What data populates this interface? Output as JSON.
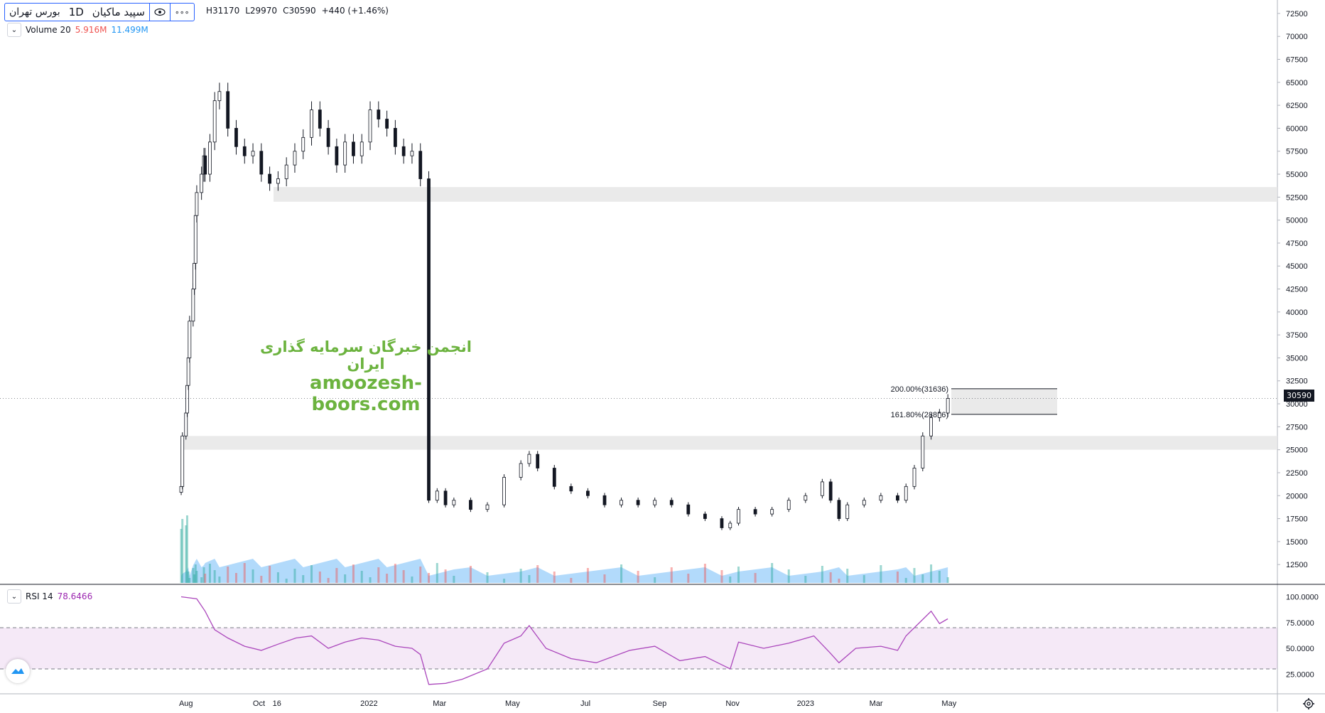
{
  "header": {
    "symbol": "سپید ماکیان",
    "interval": "1D",
    "exchange": "بورس تهران",
    "menu_label": "∘∘∘",
    "high": "H31170",
    "low": "L29970",
    "close": "C30590",
    "change": "+440 (+1.46%)"
  },
  "volume_pane": {
    "label": "Volume 20",
    "value1": "5.916M",
    "value2": "11.499M",
    "color_value1": "#ef5350",
    "color_value2": "#2196f3"
  },
  "rsi_pane": {
    "label": "RSI 14",
    "value": "78.6466",
    "color": "#9c27b0",
    "axis_ticks": [
      "100.0000",
      "75.0000",
      "50.0000",
      "25.0000"
    ]
  },
  "watermark": {
    "line1": "انجمن خبرگان سرمایه گذاری ایران",
    "line2": "amoozesh-boors.com"
  },
  "fib": {
    "label_upper": "200.00%(31636)",
    "label_lower": "161.80%(28856)"
  },
  "last_price": "30590",
  "icons": {
    "visibility": "eye-icon",
    "settings": "gear-icon",
    "logo": "tradingview-logo-icon"
  },
  "chart_data": {
    "type": "candlestick",
    "title": "سپید ماکیان",
    "interval": "1D",
    "price_axis_ticks": [
      "72500",
      "70000",
      "67500",
      "65000",
      "62500",
      "60000",
      "57500",
      "55000",
      "52500",
      "50000",
      "47500",
      "45000",
      "42500",
      "40000",
      "37500",
      "35000",
      "32500",
      "30000",
      "27500",
      "25000",
      "22500",
      "20000",
      "17500",
      "15000",
      "12500"
    ],
    "x_tick_labels": [
      "Aug",
      "Oct",
      "16",
      "2022",
      "Mar",
      "May",
      "Jul",
      "Sep",
      "Nov",
      "2023",
      "Mar",
      "May"
    ],
    "ylim": [
      10500,
      73500
    ],
    "zones": [
      {
        "from": 52000,
        "to": 53600
      },
      {
        "from": 25000,
        "to": 26500
      },
      {
        "from": 28856,
        "to": 31636
      }
    ],
    "close_series": [
      {
        "x": "2021-07-28",
        "y": 21000
      },
      {
        "x": "2021-07-29",
        "y": 26500
      },
      {
        "x": "2021-08-01",
        "y": 29000
      },
      {
        "x": "2021-08-02",
        "y": 32000
      },
      {
        "x": "2021-08-03",
        "y": 35000
      },
      {
        "x": "2021-08-04",
        "y": 39000
      },
      {
        "x": "2021-08-07",
        "y": 42500
      },
      {
        "x": "2021-08-08",
        "y": 45300
      },
      {
        "x": "2021-08-09",
        "y": 50500
      },
      {
        "x": "2021-08-10",
        "y": 53000
      },
      {
        "x": "2021-08-14",
        "y": 55000
      },
      {
        "x": "2021-08-16",
        "y": 57000
      },
      {
        "x": "2021-08-17",
        "y": 55000
      },
      {
        "x": "2021-08-21",
        "y": 58500
      },
      {
        "x": "2021-08-25",
        "y": 63000
      },
      {
        "x": "2021-08-29",
        "y": 64000
      },
      {
        "x": "2021-09-05",
        "y": 60000
      },
      {
        "x": "2021-09-12",
        "y": 58000
      },
      {
        "x": "2021-09-19",
        "y": 57000
      },
      {
        "x": "2021-09-26",
        "y": 57500
      },
      {
        "x": "2021-10-03",
        "y": 55000
      },
      {
        "x": "2021-10-10",
        "y": 54000
      },
      {
        "x": "2021-10-17",
        "y": 54500
      },
      {
        "x": "2021-10-24",
        "y": 56000
      },
      {
        "x": "2021-10-31",
        "y": 57500
      },
      {
        "x": "2021-11-07",
        "y": 59000
      },
      {
        "x": "2021-11-14",
        "y": 62000
      },
      {
        "x": "2021-11-21",
        "y": 60000
      },
      {
        "x": "2021-11-28",
        "y": 58000
      },
      {
        "x": "2021-12-05",
        "y": 56000
      },
      {
        "x": "2021-12-12",
        "y": 58500
      },
      {
        "x": "2021-12-19",
        "y": 57000
      },
      {
        "x": "2021-12-26",
        "y": 58500
      },
      {
        "x": "2022-01-02",
        "y": 62000
      },
      {
        "x": "2022-01-09",
        "y": 61000
      },
      {
        "x": "2022-01-16",
        "y": 60000
      },
      {
        "x": "2022-01-23",
        "y": 58000
      },
      {
        "x": "2022-01-30",
        "y": 57000
      },
      {
        "x": "2022-02-06",
        "y": 57500
      },
      {
        "x": "2022-02-13",
        "y": 54500
      },
      {
        "x": "2022-02-20",
        "y": 19500
      },
      {
        "x": "2022-02-27",
        "y": 20500
      },
      {
        "x": "2022-03-06",
        "y": 19000
      },
      {
        "x": "2022-03-13",
        "y": 19500
      },
      {
        "x": "2022-03-27",
        "y": 18500
      },
      {
        "x": "2022-04-10",
        "y": 19000
      },
      {
        "x": "2022-04-24",
        "y": 22000
      },
      {
        "x": "2022-05-08",
        "y": 23500
      },
      {
        "x": "2022-05-15",
        "y": 24500
      },
      {
        "x": "2022-05-22",
        "y": 23000
      },
      {
        "x": "2022-06-05",
        "y": 21000
      },
      {
        "x": "2022-06-19",
        "y": 20500
      },
      {
        "x": "2022-07-03",
        "y": 20000
      },
      {
        "x": "2022-07-17",
        "y": 19000
      },
      {
        "x": "2022-07-31",
        "y": 19500
      },
      {
        "x": "2022-08-14",
        "y": 19000
      },
      {
        "x": "2022-08-28",
        "y": 19500
      },
      {
        "x": "2022-09-11",
        "y": 19000
      },
      {
        "x": "2022-09-25",
        "y": 18000
      },
      {
        "x": "2022-10-09",
        "y": 17500
      },
      {
        "x": "2022-10-23",
        "y": 16500
      },
      {
        "x": "2022-10-30",
        "y": 17000
      },
      {
        "x": "2022-11-06",
        "y": 18500
      },
      {
        "x": "2022-11-20",
        "y": 18000
      },
      {
        "x": "2022-12-04",
        "y": 18500
      },
      {
        "x": "2022-12-18",
        "y": 19500
      },
      {
        "x": "2023-01-01",
        "y": 20000
      },
      {
        "x": "2023-01-15",
        "y": 21500
      },
      {
        "x": "2023-01-22",
        "y": 19500
      },
      {
        "x": "2023-01-29",
        "y": 17500
      },
      {
        "x": "2023-02-05",
        "y": 19000
      },
      {
        "x": "2023-02-19",
        "y": 19500
      },
      {
        "x": "2023-03-05",
        "y": 20000
      },
      {
        "x": "2023-03-19",
        "y": 19500
      },
      {
        "x": "2023-03-26",
        "y": 21000
      },
      {
        "x": "2023-04-02",
        "y": 23000
      },
      {
        "x": "2023-04-09",
        "y": 26500
      },
      {
        "x": "2023-04-16",
        "y": 28500
      },
      {
        "x": "2023-04-23",
        "y": 29000
      },
      {
        "x": "2023-04-30",
        "y": 30590
      }
    ],
    "rsi": {
      "name": "RSI 14",
      "ylim": [
        10,
        110
      ],
      "bands": [
        30,
        70
      ],
      "series": [
        {
          "x": "2021-07-28",
          "y": 100
        },
        {
          "x": "2021-08-10",
          "y": 98
        },
        {
          "x": "2021-08-17",
          "y": 86
        },
        {
          "x": "2021-08-25",
          "y": 68
        },
        {
          "x": "2021-09-05",
          "y": 60
        },
        {
          "x": "2021-09-19",
          "y": 52
        },
        {
          "x": "2021-10-03",
          "y": 48
        },
        {
          "x": "2021-10-17",
          "y": 54
        },
        {
          "x": "2021-11-01",
          "y": 60
        },
        {
          "x": "2021-11-14",
          "y": 62
        },
        {
          "x": "2021-11-28",
          "y": 50
        },
        {
          "x": "2021-12-12",
          "y": 56
        },
        {
          "x": "2021-12-26",
          "y": 60
        },
        {
          "x": "2022-01-09",
          "y": 58
        },
        {
          "x": "2022-01-23",
          "y": 52
        },
        {
          "x": "2022-02-06",
          "y": 50
        },
        {
          "x": "2022-02-13",
          "y": 44
        },
        {
          "x": "2022-02-20",
          "y": 15
        },
        {
          "x": "2022-03-06",
          "y": 16
        },
        {
          "x": "2022-03-20",
          "y": 20
        },
        {
          "x": "2022-04-10",
          "y": 30
        },
        {
          "x": "2022-04-24",
          "y": 55
        },
        {
          "x": "2022-05-08",
          "y": 62
        },
        {
          "x": "2022-05-15",
          "y": 72
        },
        {
          "x": "2022-05-29",
          "y": 50
        },
        {
          "x": "2022-06-19",
          "y": 40
        },
        {
          "x": "2022-07-10",
          "y": 36
        },
        {
          "x": "2022-08-07",
          "y": 48
        },
        {
          "x": "2022-08-28",
          "y": 52
        },
        {
          "x": "2022-09-18",
          "y": 38
        },
        {
          "x": "2022-10-09",
          "y": 42
        },
        {
          "x": "2022-10-30",
          "y": 30
        },
        {
          "x": "2022-11-06",
          "y": 56
        },
        {
          "x": "2022-11-27",
          "y": 50
        },
        {
          "x": "2022-12-18",
          "y": 55
        },
        {
          "x": "2023-01-08",
          "y": 62
        },
        {
          "x": "2023-01-22",
          "y": 45
        },
        {
          "x": "2023-01-29",
          "y": 36
        },
        {
          "x": "2023-02-12",
          "y": 50
        },
        {
          "x": "2023-03-05",
          "y": 52
        },
        {
          "x": "2023-03-19",
          "y": 48
        },
        {
          "x": "2023-03-26",
          "y": 62
        },
        {
          "x": "2023-04-09",
          "y": 78
        },
        {
          "x": "2023-04-16",
          "y": 86
        },
        {
          "x": "2023-04-23",
          "y": 74
        },
        {
          "x": "2023-04-30",
          "y": 78.6466
        }
      ]
    }
  }
}
